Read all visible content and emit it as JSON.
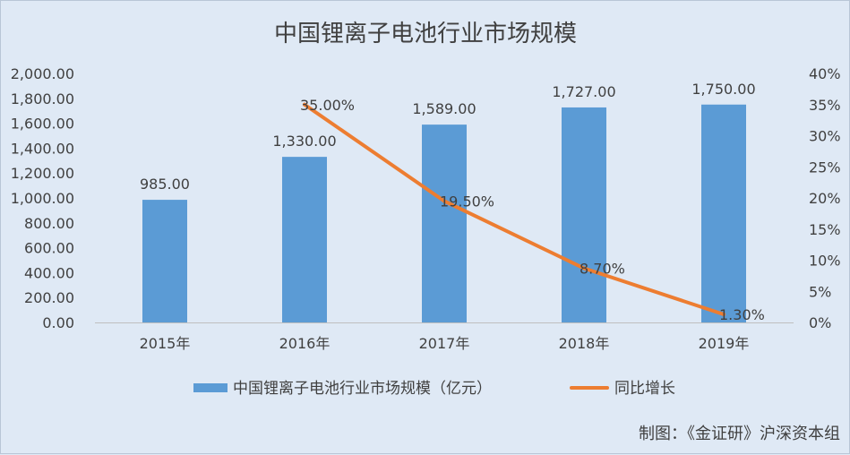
{
  "chart_data": {
    "type": "bar",
    "title": "中国锂离子电池行业市场规模",
    "categories": [
      "2015年",
      "2016年",
      "2017年",
      "2018年",
      "2019年"
    ],
    "series": [
      {
        "name": "中国锂离子电池行业市场规模（亿元）",
        "type": "bar",
        "axis": "left",
        "color": "#5b9bd5",
        "values": [
          985.0,
          1330.0,
          1589.0,
          1727.0,
          1750.0
        ],
        "labels": [
          "985.00",
          "1,330.00",
          "1,589.00",
          "1,727.00",
          "1,750.00"
        ]
      },
      {
        "name": "同比增长",
        "type": "line",
        "axis": "right",
        "color": "#ed7d31",
        "values": [
          null,
          35.0,
          19.5,
          8.7,
          1.3
        ],
        "labels": [
          "",
          "35.00%",
          "19.50%",
          "8.70%",
          "1.30%"
        ]
      }
    ],
    "y_left": {
      "range": [
        0,
        2000
      ],
      "ticks": [
        "0.00",
        "200.00",
        "400.00",
        "600.00",
        "800.00",
        "1,000.00",
        "1,200.00",
        "1,400.00",
        "1,600.00",
        "1,800.00",
        "2,000.00"
      ]
    },
    "y_right": {
      "range": [
        0,
        40
      ],
      "ticks": [
        "0%",
        "5%",
        "10%",
        "15%",
        "20%",
        "25%",
        "30%",
        "35%",
        "40%"
      ]
    },
    "grid": false,
    "legend_position": "bottom"
  },
  "credit": "制图：《金证研》沪深资本组"
}
